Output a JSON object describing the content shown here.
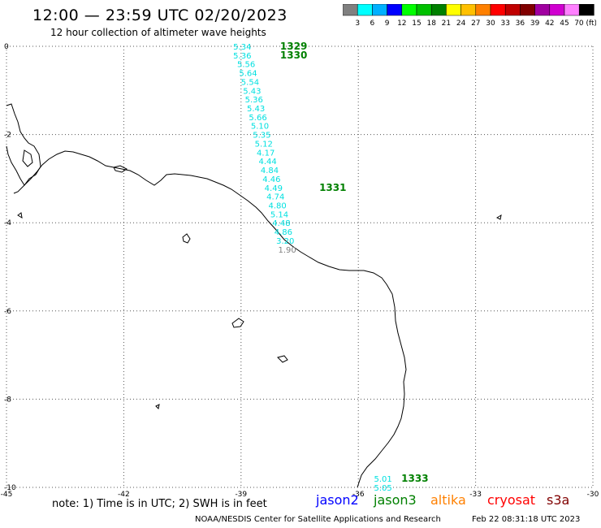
{
  "header": {
    "title": "12:00 — 23:59 UTC 02/20/2023",
    "subtitle": "12 hour collection of altimeter wave heights"
  },
  "color_scale": {
    "labels": [
      "3",
      "6",
      "9",
      "12",
      "15",
      "18",
      "21",
      "24",
      "27",
      "30",
      "33",
      "36",
      "39",
      "42",
      "45",
      "70 (ft)"
    ],
    "colors": [
      "#808080",
      "#00ffff",
      "#00b0ff",
      "#0000ff",
      "#00ff00",
      "#00c000",
      "#008000",
      "#ffff00",
      "#ffc000",
      "#ff8000",
      "#ff0000",
      "#c00000",
      "#800000",
      "#a000a0",
      "#d000d0",
      "#ff80ff",
      "#000000"
    ]
  },
  "axes": {
    "x_ticks": [
      "-45",
      "-42",
      "-39",
      "-36",
      "-33",
      "-30"
    ],
    "y_ticks": [
      "0",
      "-2",
      "-4",
      "-6",
      "-8",
      "-10"
    ]
  },
  "chart_data": {
    "type": "scatter",
    "xlim": [
      -45,
      -30
    ],
    "ylim": [
      -10,
      0
    ],
    "grid": true,
    "tracks": [
      {
        "id": "1329",
        "satellite": "jason3",
        "label_pos": [
          -38.0,
          0.0
        ]
      },
      {
        "id": "1330",
        "satellite": "jason3",
        "label_pos": [
          -38.0,
          -0.2
        ]
      },
      {
        "id": "1331",
        "satellite": "jason3",
        "label_pos": [
          -37.0,
          -3.2
        ],
        "points": [
          {
            "lat": 0.0,
            "lon": -39.2,
            "swh": "5.34",
            "color": "#00e0e0"
          },
          {
            "lat": -0.2,
            "lon": -39.2,
            "swh": "5.36",
            "color": "#00e0e0"
          },
          {
            "lat": -0.4,
            "lon": -39.1,
            "swh": "5.56",
            "color": "#00e0e0"
          },
          {
            "lat": -0.6,
            "lon": -39.05,
            "swh": "5.64",
            "color": "#00e0e0"
          },
          {
            "lat": -0.8,
            "lon": -39.0,
            "swh": "5.54",
            "color": "#00e0e0"
          },
          {
            "lat": -1.0,
            "lon": -38.95,
            "swh": "5.43",
            "color": "#00e0e0"
          },
          {
            "lat": -1.2,
            "lon": -38.9,
            "swh": "5.36",
            "color": "#00e0e0"
          },
          {
            "lat": -1.4,
            "lon": -38.85,
            "swh": "5.43",
            "color": "#00e0e0"
          },
          {
            "lat": -1.6,
            "lon": -38.8,
            "swh": "5.66",
            "color": "#00e0e0"
          },
          {
            "lat": -1.8,
            "lon": -38.75,
            "swh": "5.10",
            "color": "#00e0e0"
          },
          {
            "lat": -2.0,
            "lon": -38.7,
            "swh": "5.35",
            "color": "#00e0e0"
          },
          {
            "lat": -2.2,
            "lon": -38.65,
            "swh": "5.12",
            "color": "#00e0e0"
          },
          {
            "lat": -2.4,
            "lon": -38.6,
            "swh": "4.17",
            "color": "#00e0e0"
          },
          {
            "lat": -2.6,
            "lon": -38.55,
            "swh": "4.44",
            "color": "#00e0e0"
          },
          {
            "lat": -2.8,
            "lon": -38.5,
            "swh": "4.84",
            "color": "#00e0e0"
          },
          {
            "lat": -3.0,
            "lon": -38.45,
            "swh": "4.46",
            "color": "#00e0e0"
          },
          {
            "lat": -3.2,
            "lon": -38.4,
            "swh": "4.49",
            "color": "#00e0e0"
          },
          {
            "lat": -3.4,
            "lon": -38.35,
            "swh": "4.74",
            "color": "#00e0e0"
          },
          {
            "lat": -3.6,
            "lon": -38.3,
            "swh": "4.80",
            "color": "#00e0e0"
          },
          {
            "lat": -3.8,
            "lon": -38.25,
            "swh": "5.14",
            "color": "#00e0e0"
          },
          {
            "lat": -4.0,
            "lon": -38.2,
            "swh": "4.48",
            "color": "#00e0e0"
          },
          {
            "lat": -4.2,
            "lon": -38.15,
            "swh": "4.86",
            "color": "#00e0e0"
          },
          {
            "lat": -4.4,
            "lon": -38.1,
            "swh": "3.20",
            "color": "#00e0e0"
          },
          {
            "lat": -4.6,
            "lon": -38.05,
            "swh": "1.90",
            "color": "#808080"
          }
        ]
      },
      {
        "id": "1333",
        "satellite": "jason3",
        "label_pos": [
          -34.9,
          -9.8
        ],
        "points": [
          {
            "lat": -9.8,
            "lon": -35.6,
            "swh": "5.01",
            "color": "#00e0e0"
          },
          {
            "lat": -10.0,
            "lon": -35.6,
            "swh": "5.05",
            "color": "#00e0e0"
          }
        ]
      }
    ]
  },
  "note": "note: 1) Time is in UTC; 2) SWH is in feet",
  "satellites": [
    {
      "name": "jason2",
      "color": "#0000ff"
    },
    {
      "name": "jason3",
      "color": "#008000"
    },
    {
      "name": "altika",
      "color": "#ff8000"
    },
    {
      "name": "cryosat",
      "color": "#ff0000"
    },
    {
      "name": "s3a",
      "color": "#800000"
    }
  ],
  "footer": {
    "credit": "NOAA/NESDIS Center for Satellite Applications and Research",
    "timestamp": "Feb 22 08:31:18 UTC 2023"
  }
}
